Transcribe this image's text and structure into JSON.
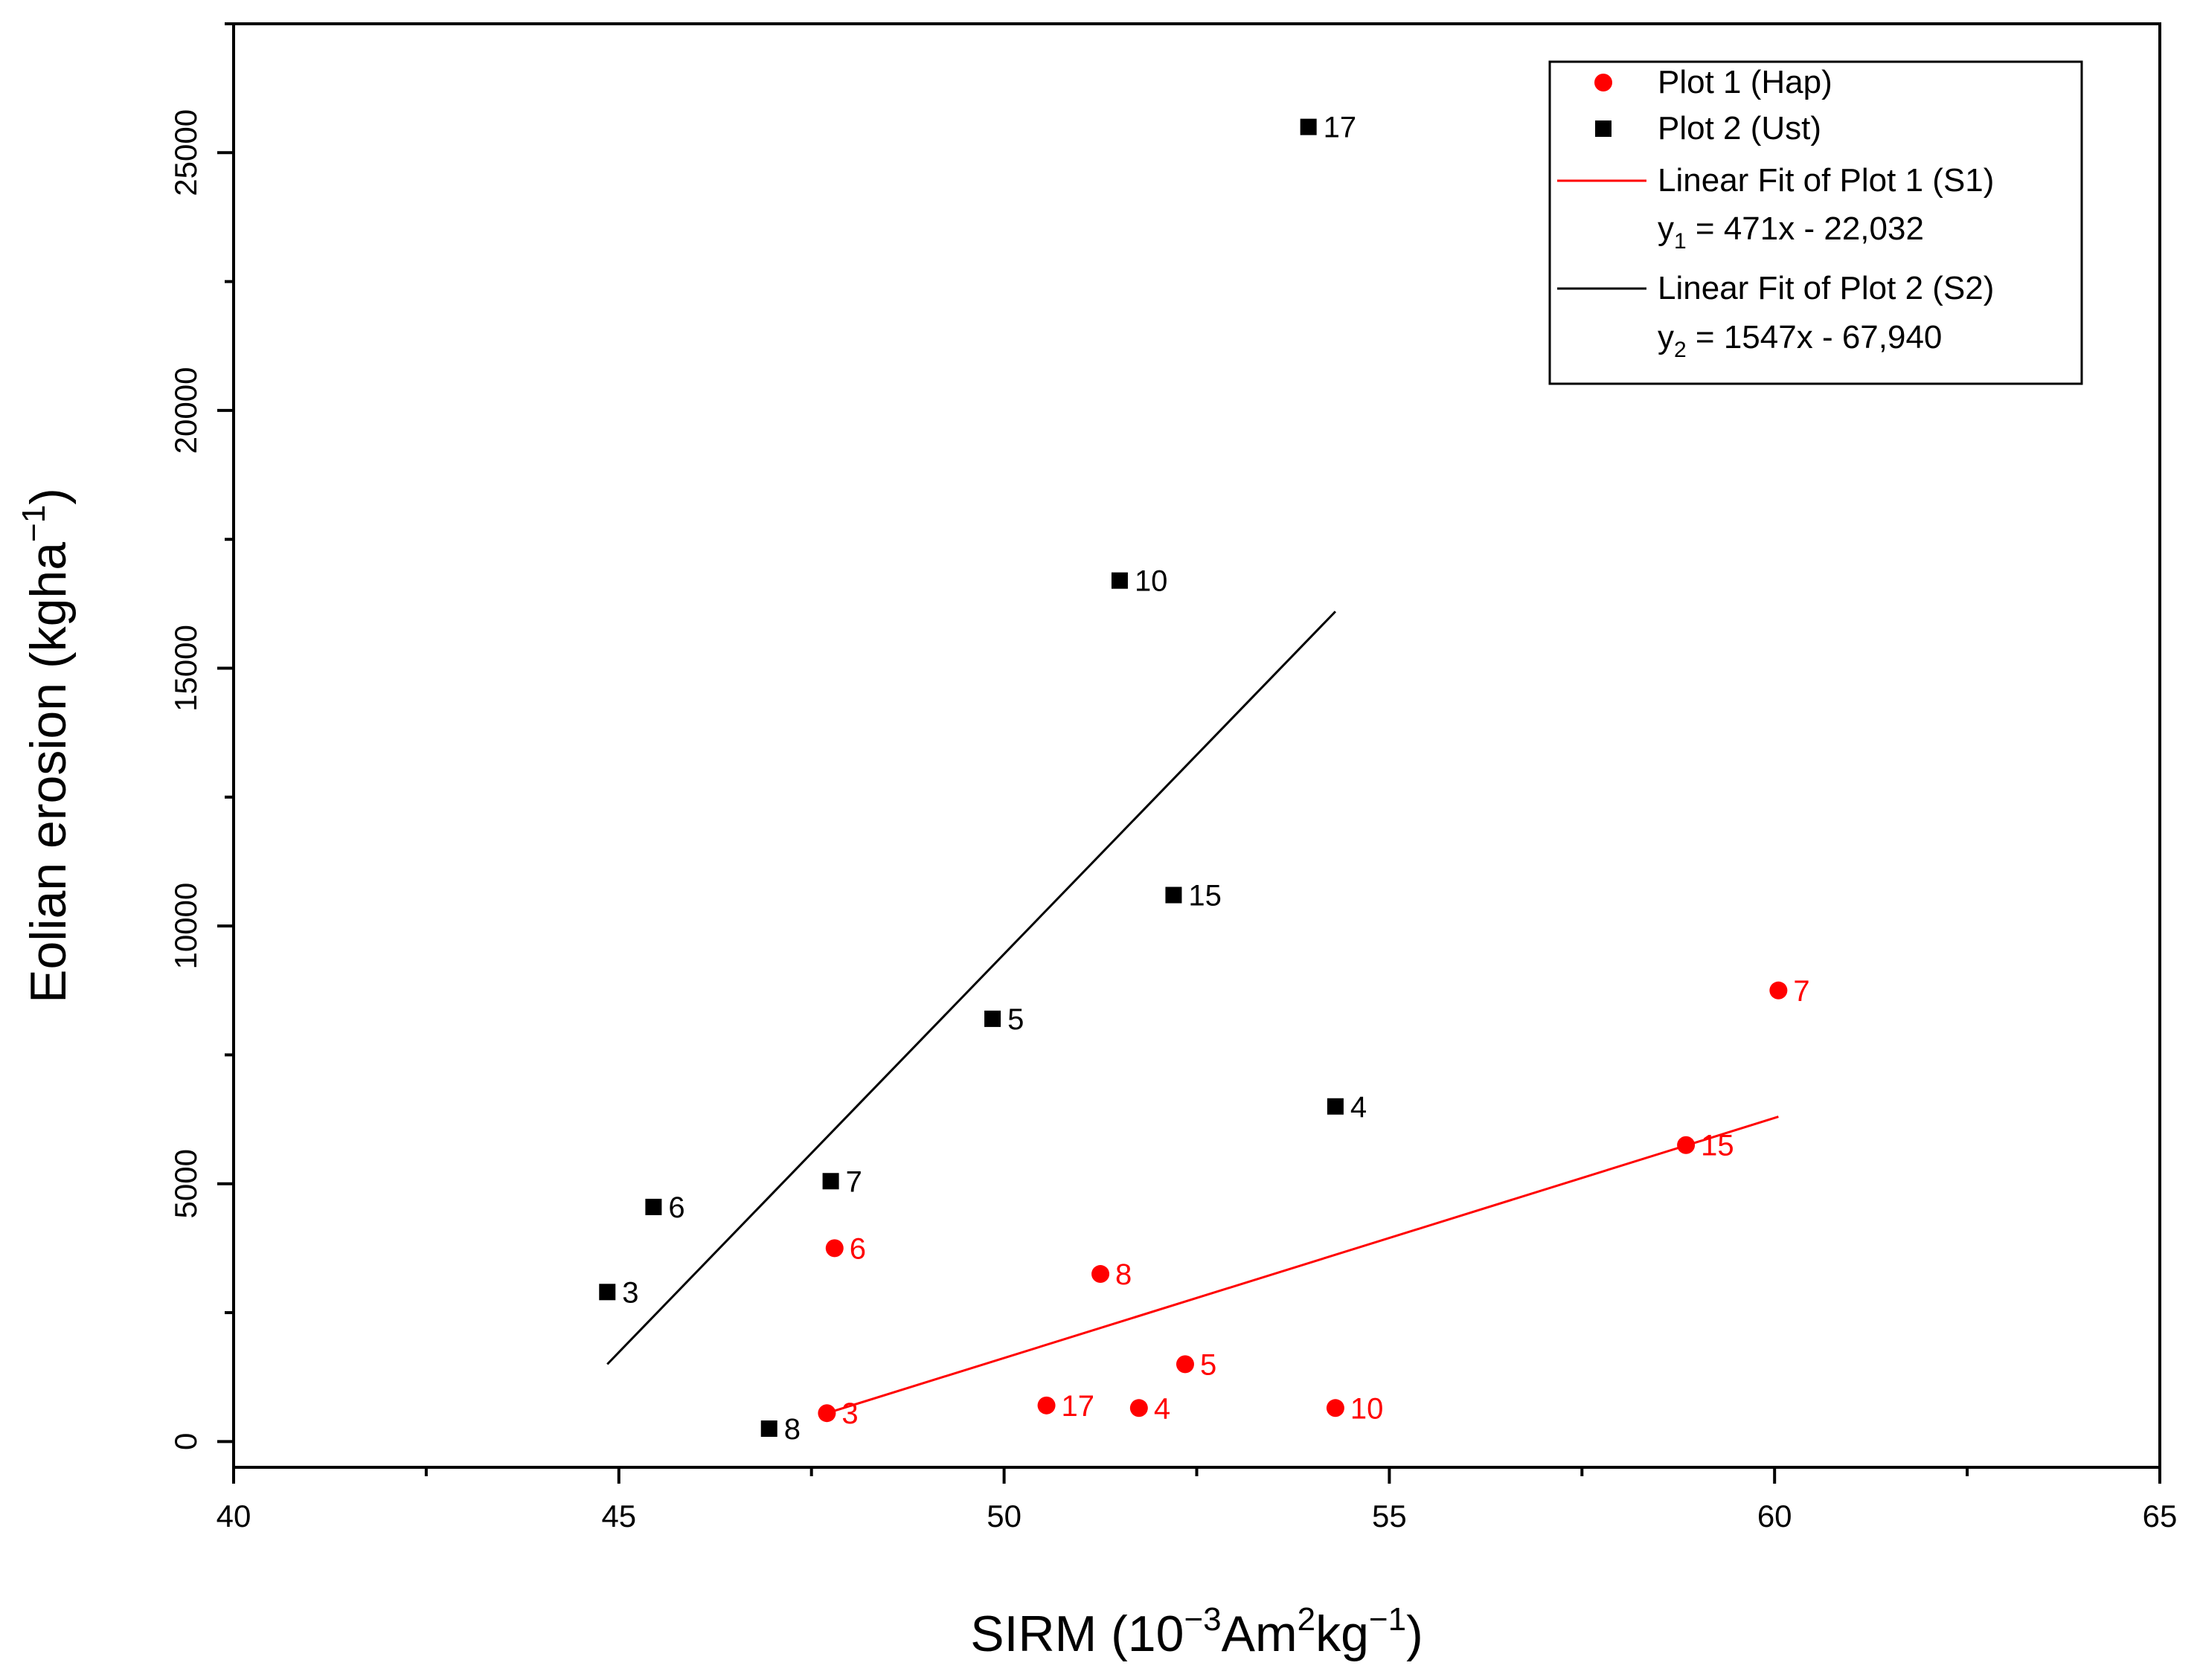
{
  "chart_data": {
    "type": "scatter",
    "xlabel": {
      "prefix": "SIRM (10",
      "sup1": "−3",
      "mid": "Am",
      "sup2": "2",
      "mid2": "kg",
      "sup3": "−1",
      "suffix": ")"
    },
    "ylabel": {
      "prefix": "Eolian erosion (kgha",
      "sup": "−1",
      "suffix": ")"
    },
    "xlim": [
      40,
      65
    ],
    "ylim": [
      -500,
      27500
    ],
    "x_ticks": [
      40,
      45,
      50,
      55,
      60,
      65
    ],
    "x_tick_labels": [
      "40",
      "45",
      "50",
      "55",
      "60",
      "65"
    ],
    "y_ticks": [
      0,
      5000,
      10000,
      15000,
      20000,
      25000
    ],
    "y_tick_labels": [
      "0",
      "5000",
      "10000",
      "15000",
      "20000",
      "25000"
    ],
    "grid": false,
    "legend_position": "top-right",
    "series": [
      {
        "name": "Plot 1 (Hap)",
        "marker": "circle",
        "color": "#ff0000",
        "points": [
          {
            "x": 47.7,
            "y": 550,
            "label": "3"
          },
          {
            "x": 47.8,
            "y": 3750,
            "label": "6"
          },
          {
            "x": 50.55,
            "y": 700,
            "label": "17"
          },
          {
            "x": 51.25,
            "y": 3250,
            "label": "8"
          },
          {
            "x": 51.75,
            "y": 650,
            "label": "4"
          },
          {
            "x": 52.35,
            "y": 1500,
            "label": "5"
          },
          {
            "x": 54.3,
            "y": 650,
            "label": "10"
          },
          {
            "x": 58.85,
            "y": 5750,
            "label": "15"
          },
          {
            "x": 60.05,
            "y": 8750,
            "label": "7"
          }
        ]
      },
      {
        "name": "Plot 2 (Ust)",
        "marker": "square",
        "color": "#000000",
        "points": [
          {
            "x": 44.85,
            "y": 2900,
            "label": "3"
          },
          {
            "x": 45.45,
            "y": 4550,
            "label": "6"
          },
          {
            "x": 46.95,
            "y": 250,
            "label": "8"
          },
          {
            "x": 47.75,
            "y": 5050,
            "label": "7"
          },
          {
            "x": 49.85,
            "y": 8200,
            "label": "5"
          },
          {
            "x": 51.5,
            "y": 16700,
            "label": "10"
          },
          {
            "x": 52.2,
            "y": 10600,
            "label": "15"
          },
          {
            "x": 54.3,
            "y": 6500,
            "label": "4"
          },
          {
            "x": 53.95,
            "y": 25500,
            "label": "17"
          }
        ]
      }
    ],
    "fits": [
      {
        "name": "Linear Fit of Plot 1 (S1)",
        "equation": {
          "var": "y",
          "sub": "1",
          "rest": " = 471x - 22,032"
        },
        "color": "#ff0000",
        "x_range": [
          47.7,
          60.05
        ],
        "y_range": [
          550,
          6300
        ]
      },
      {
        "name": "Linear Fit of Plot 2 (S2)",
        "equation": {
          "var": "y",
          "sub": "2",
          "rest": " = 1547x - 67,940"
        },
        "color": "#000000",
        "x_range": [
          44.85,
          54.3
        ],
        "y_range": [
          1500,
          16100
        ]
      }
    ]
  }
}
